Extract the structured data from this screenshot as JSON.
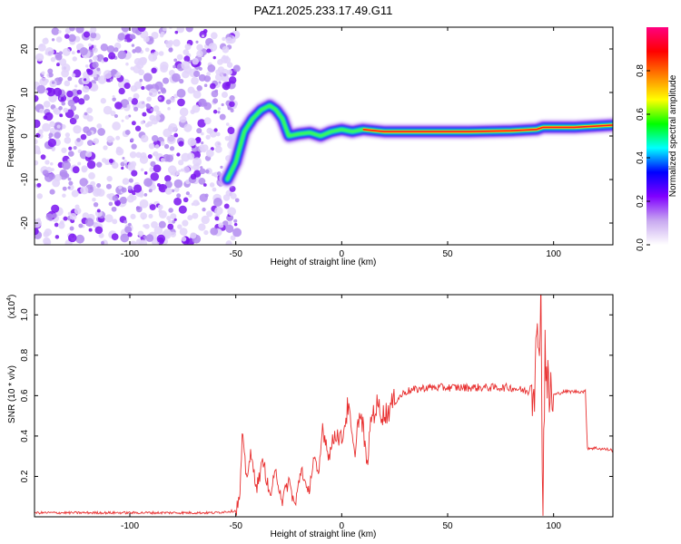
{
  "title": "PAZ1.2025.233.17.49.G11",
  "chart_data": [
    {
      "type": "heatmap",
      "name": "spectrogram",
      "xlabel": "Height of straight line (km)",
      "ylabel": "Frequency (Hz)",
      "xlim": [
        -145,
        128
      ],
      "ylim": [
        -25,
        25
      ],
      "x_ticks": [
        -100,
        -50,
        0,
        50,
        100
      ],
      "x_tick_labels": [
        "-100",
        "-50",
        "0",
        "50",
        "100"
      ],
      "y_ticks": [
        -20,
        -10,
        0,
        10,
        20
      ],
      "y_tick_labels": [
        "-20",
        "-10",
        "0",
        "10",
        "20"
      ],
      "noise_region_km": [
        -145,
        -55
      ],
      "ridge_km": [
        -54,
        -50,
        -46,
        -42,
        -38,
        -34,
        -31,
        -28,
        -25,
        -20,
        -15,
        -10,
        -5,
        0,
        5,
        10,
        20,
        40,
        60,
        80,
        92,
        95,
        110,
        128
      ],
      "ridge_hz": [
        -10,
        -6,
        1,
        4,
        6,
        7,
        6,
        4,
        0,
        0.5,
        0.8,
        0,
        1,
        1.5,
        1,
        1.5,
        1,
        1,
        1,
        1.2,
        1.5,
        2,
        2,
        2.5
      ],
      "colorbar": {
        "label": "Normalized spectral amplitude",
        "range": [
          0,
          1
        ],
        "ticks": [
          0,
          0.2,
          0.4,
          0.6,
          0.8
        ],
        "tick_labels": [
          "0.0",
          "0.2",
          "0.4",
          "0.6",
          "0.8"
        ],
        "colors": [
          "#ffffff",
          "#c8a8f0",
          "#8000ff",
          "#0000ff",
          "#00ffff",
          "#00ff00",
          "#ffff00",
          "#ff8000",
          "#ff0000",
          "#ff0080"
        ]
      }
    },
    {
      "type": "line",
      "name": "snr",
      "xlabel": "Height of straight line (km)",
      "ylabel": "SNR (10 * v/v)",
      "y_multiplier_label": "(x10",
      "y_multiplier_exp": "4",
      "y_multiplier_close": ")",
      "xlim": [
        -145,
        128
      ],
      "ylim": [
        0,
        1.1
      ],
      "x_ticks": [
        -100,
        -50,
        0,
        50,
        100
      ],
      "x_tick_labels": [
        "-100",
        "-50",
        "0",
        "50",
        "100"
      ],
      "y_ticks": [
        0.2,
        0.4,
        0.6,
        0.8,
        1.0
      ],
      "y_tick_labels": [
        "0.2",
        "0.4",
        "0.6",
        "0.8",
        "1.0"
      ],
      "color": "#e83030",
      "series": [
        {
          "name": "SNR",
          "x": [
            -145,
            -60,
            -50,
            -48,
            -47,
            -45,
            -43,
            -40,
            -37,
            -34,
            -31,
            -28,
            -25,
            -22,
            -19,
            -16,
            -13,
            -11,
            -9,
            -6,
            -3,
            0,
            3,
            6,
            8,
            10,
            12,
            14,
            17,
            20,
            25,
            30,
            35,
            40,
            50,
            60,
            70,
            80,
            88,
            91,
            93,
            94,
            95,
            96,
            97,
            99,
            105,
            115,
            116,
            120,
            128
          ],
          "y": [
            0.02,
            0.02,
            0.03,
            0.1,
            0.4,
            0.2,
            0.3,
            0.15,
            0.28,
            0.1,
            0.22,
            0.08,
            0.18,
            0.05,
            0.25,
            0.1,
            0.3,
            0.18,
            0.45,
            0.3,
            0.42,
            0.38,
            0.55,
            0.3,
            0.5,
            0.45,
            0.25,
            0.5,
            0.55,
            0.5,
            0.57,
            0.62,
            0.63,
            0.64,
            0.64,
            0.64,
            0.64,
            0.64,
            0.62,
            0.7,
            0.9,
            1.1,
            0.02,
            0.92,
            0.62,
            0.6,
            0.62,
            0.62,
            0.34,
            0.34,
            0.33
          ]
        }
      ]
    }
  ]
}
